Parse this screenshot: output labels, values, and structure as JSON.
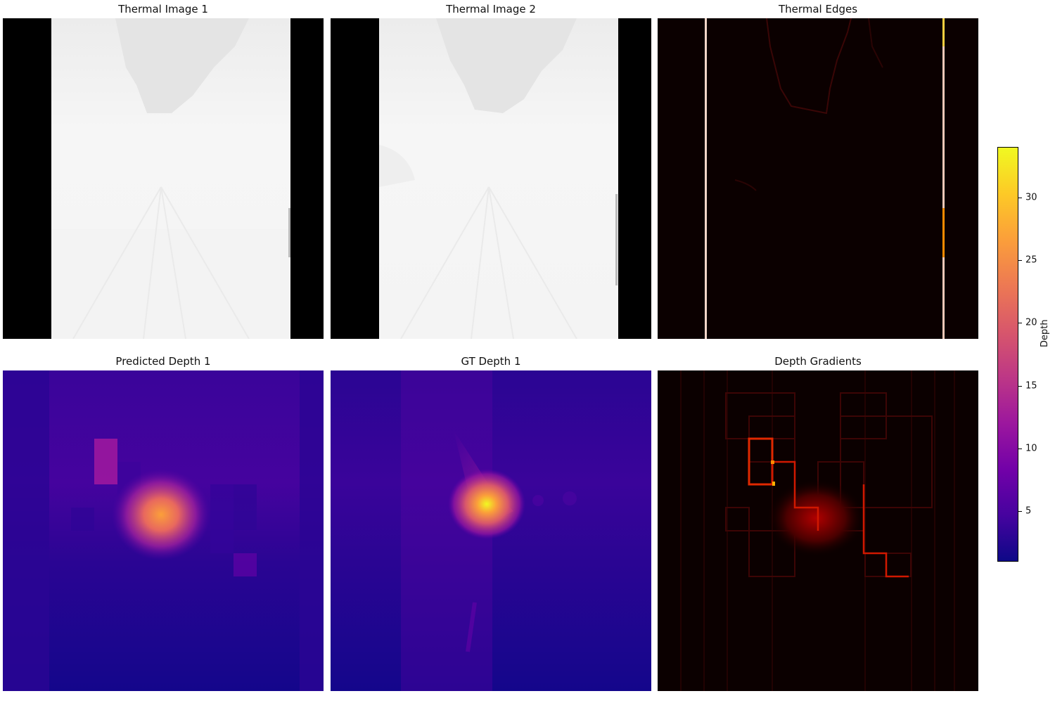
{
  "chart_data": [
    {
      "type": "heatmap",
      "title": "Thermal Image 1",
      "colormap": "gray",
      "axes": "off"
    },
    {
      "type": "heatmap",
      "title": "Thermal Image 2",
      "colormap": "gray",
      "axes": "off"
    },
    {
      "type": "heatmap",
      "title": "Thermal Edges",
      "colormap": "hot",
      "axes": "off"
    },
    {
      "type": "heatmap",
      "title": "Predicted Depth 1",
      "colormap": "plasma",
      "axes": "off"
    },
    {
      "type": "heatmap",
      "title": "GT Depth 1",
      "colormap": "plasma",
      "axes": "off"
    },
    {
      "type": "heatmap",
      "title": "Depth Gradients",
      "colormap": "hot",
      "axes": "off"
    }
  ],
  "colorbar": {
    "label": "Depth",
    "colormap": "plasma",
    "range": [
      1,
      34
    ],
    "ticks": [
      5,
      10,
      15,
      20,
      25,
      30
    ],
    "tick_labels": [
      "5",
      "10",
      "15",
      "20",
      "25",
      "30"
    ]
  },
  "colors": {
    "plasma_stops": [
      "#0d0887",
      "#46039f",
      "#7201a8",
      "#9c179e",
      "#bd3786",
      "#d8576b",
      "#ed7953",
      "#fb9f3a",
      "#fdca26",
      "#f0f921"
    ]
  }
}
